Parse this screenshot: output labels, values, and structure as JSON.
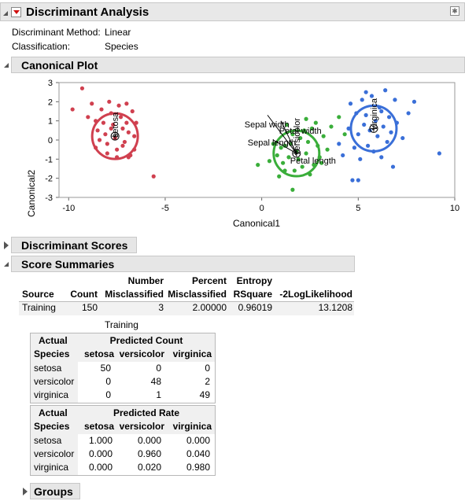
{
  "report": {
    "title": "Discriminant Analysis",
    "method_label": "Discriminant Method:",
    "method_value": "Linear",
    "class_label": "Classification:",
    "class_value": "Species"
  },
  "sections": {
    "canonical_plot": "Canonical Plot",
    "discriminant_scores": "Discriminant Scores",
    "score_summaries": "Score Summaries",
    "groups": "Groups"
  },
  "plot": {
    "xlabel": "Canonical1",
    "ylabel": "Canonical2",
    "xticks": [
      "-10",
      "-5",
      "0",
      "5",
      "10"
    ],
    "yticks": [
      "3",
      "2",
      "1",
      "0",
      "-1",
      "-2",
      "-3"
    ],
    "group_labels": [
      "setosa",
      "versicolor",
      "virginica"
    ],
    "vector_labels": [
      "Sepal width",
      "Petal width",
      "Sepal length",
      "Petal length"
    ],
    "colors": {
      "setosa": "#d0404f",
      "versicolor": "#3aae3a",
      "virginica": "#3a6fd8"
    }
  },
  "chart_data": {
    "type": "scatter",
    "xlabel": "Canonical1",
    "ylabel": "Canonical2",
    "xlim": [
      -10.5,
      10
    ],
    "ylim": [
      -3,
      3
    ],
    "series": [
      {
        "name": "setosa",
        "points": [
          [
            -9.8,
            1.6
          ],
          [
            -9.3,
            2.7
          ],
          [
            -9.0,
            1.2
          ],
          [
            -8.8,
            1.9
          ],
          [
            -8.6,
            1.0
          ],
          [
            -8.5,
            0.5
          ],
          [
            -8.3,
            1.6
          ],
          [
            -8.2,
            0.9
          ],
          [
            -8.1,
            0.3
          ],
          [
            -8.0,
            -0.2
          ],
          [
            -7.9,
            2.0
          ],
          [
            -7.8,
            1.4
          ],
          [
            -7.7,
            0.8
          ],
          [
            -7.6,
            0.1
          ],
          [
            -7.5,
            -0.5
          ],
          [
            -7.4,
            1.8
          ],
          [
            -7.3,
            1.2
          ],
          [
            -7.2,
            0.6
          ],
          [
            -7.1,
            -0.1
          ],
          [
            -7.0,
            0.9
          ],
          [
            -6.9,
            0.4
          ],
          [
            -6.8,
            -0.8
          ],
          [
            -6.7,
            1.5
          ],
          [
            -6.6,
            0.2
          ],
          [
            -7.5,
            -0.9
          ],
          [
            -8.0,
            -0.7
          ],
          [
            -7.2,
            -0.3
          ],
          [
            -6.9,
            -0.9
          ],
          [
            -8.4,
            0.0
          ],
          [
            -5.6,
            -1.9
          ],
          [
            -6.5,
            0.9
          ],
          [
            -7.8,
            0.6
          ],
          [
            -8.6,
            -0.4
          ],
          [
            -7.0,
            1.9
          ],
          [
            -6.6,
            -0.5
          ]
        ]
      },
      {
        "name": "versicolor",
        "points": [
          [
            -0.2,
            -1.3
          ],
          [
            0.4,
            -1.1
          ],
          [
            0.8,
            -0.8
          ],
          [
            0.9,
            -1.9
          ],
          [
            1.0,
            -0.4
          ],
          [
            1.1,
            -1.2
          ],
          [
            1.2,
            -0.3
          ],
          [
            1.3,
            0.8
          ],
          [
            1.4,
            -0.9
          ],
          [
            1.5,
            -0.2
          ],
          [
            1.6,
            0.3
          ],
          [
            1.7,
            -1.6
          ],
          [
            1.8,
            -0.6
          ],
          [
            1.9,
            -1.0
          ],
          [
            2.0,
            0.1
          ],
          [
            2.1,
            -1.4
          ],
          [
            2.2,
            0.5
          ],
          [
            2.3,
            -0.7
          ],
          [
            2.4,
            -0.1
          ],
          [
            2.5,
            -1.8
          ],
          [
            2.6,
            0.6
          ],
          [
            2.7,
            -1.3
          ],
          [
            2.8,
            0.9
          ],
          [
            2.9,
            -0.3
          ],
          [
            3.0,
            -0.9
          ],
          [
            3.2,
            0.2
          ],
          [
            3.4,
            -0.5
          ],
          [
            3.6,
            0.7
          ],
          [
            4.0,
            1.2
          ],
          [
            4.3,
            0.3
          ],
          [
            1.6,
            -2.6
          ],
          [
            0.6,
            -0.2
          ],
          [
            2.3,
            1.1
          ],
          [
            1.2,
            -1.6
          ],
          [
            3.1,
            -1.2
          ]
        ]
      },
      {
        "name": "virginica",
        "points": [
          [
            4.0,
            -0.2
          ],
          [
            4.2,
            -0.8
          ],
          [
            4.5,
            0.6
          ],
          [
            4.6,
            1.9
          ],
          [
            4.8,
            -0.4
          ],
          [
            4.9,
            1.4
          ],
          [
            5.0,
            0.3
          ],
          [
            5.1,
            -1.0
          ],
          [
            5.2,
            2.1
          ],
          [
            5.3,
            0.8
          ],
          [
            5.4,
            1.3
          ],
          [
            5.5,
            -0.3
          ],
          [
            5.6,
            0.5
          ],
          [
            5.7,
            2.3
          ],
          [
            5.8,
            -0.6
          ],
          [
            5.9,
            1.0
          ],
          [
            6.0,
            0.2
          ],
          [
            6.1,
            1.7
          ],
          [
            6.2,
            -0.9
          ],
          [
            6.3,
            0.7
          ],
          [
            6.4,
            2.6
          ],
          [
            6.5,
            -0.1
          ],
          [
            6.6,
            1.2
          ],
          [
            6.7,
            0.4
          ],
          [
            6.8,
            -1.4
          ],
          [
            6.9,
            2.1
          ],
          [
            7.0,
            0.9
          ],
          [
            7.3,
            0.1
          ],
          [
            7.6,
            1.4
          ],
          [
            9.2,
            -0.7
          ],
          [
            4.7,
            -2.1
          ],
          [
            5.0,
            -2.1
          ],
          [
            7.9,
            2.0
          ],
          [
            5.4,
            2.5
          ],
          [
            6.2,
            1.5
          ]
        ]
      }
    ],
    "ellipses": [
      {
        "name": "setosa",
        "center": [
          -7.6,
          0.2
        ]
      },
      {
        "name": "versicolor",
        "center": [
          1.8,
          -0.7
        ]
      },
      {
        "name": "virginica",
        "center": [
          5.8,
          0.6
        ]
      }
    ],
    "vectors": [
      {
        "name": "Sepal width",
        "to": [
          0.3,
          1.3
        ]
      },
      {
        "name": "Petal width",
        "to": [
          1.0,
          1.0
        ]
      },
      {
        "name": "Sepal length",
        "to": [
          0.6,
          0.0
        ]
      },
      {
        "name": "Petal length",
        "to": [
          1.6,
          -0.3
        ]
      }
    ]
  },
  "summary": {
    "headers": [
      [
        "",
        "",
        "Number",
        "Percent",
        "Entropy",
        ""
      ],
      [
        "Source",
        "Count",
        "Misclassified",
        "Misclassified",
        "RSquare",
        "-2LogLikelihood"
      ]
    ],
    "row": [
      "Training",
      "150",
      "3",
      "2.00000",
      "0.96019",
      "13.1208"
    ]
  },
  "training_label": "Training",
  "count_table": {
    "actual": "Actual",
    "species": "Species",
    "title": "Predicted Count",
    "cols": [
      "setosa",
      "versicolor",
      "virginica"
    ],
    "rows": [
      {
        "label": "setosa",
        "values": [
          "50",
          "0",
          "0"
        ]
      },
      {
        "label": "versicolor",
        "values": [
          "0",
          "48",
          "2"
        ]
      },
      {
        "label": "virginica",
        "values": [
          "0",
          "1",
          "49"
        ]
      }
    ]
  },
  "rate_table": {
    "actual": "Actual",
    "species": "Species",
    "title": "Predicted Rate",
    "cols": [
      "setosa",
      "versicolor",
      "virginica"
    ],
    "rows": [
      {
        "label": "setosa",
        "values": [
          "1.000",
          "0.000",
          "0.000"
        ]
      },
      {
        "label": "versicolor",
        "values": [
          "0.000",
          "0.960",
          "0.040"
        ]
      },
      {
        "label": "virginica",
        "values": [
          "0.000",
          "0.020",
          "0.980"
        ]
      }
    ]
  }
}
